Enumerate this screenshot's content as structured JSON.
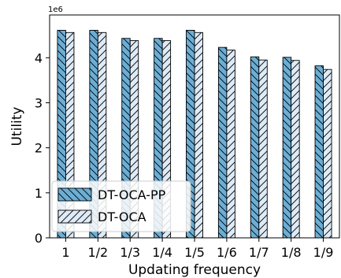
{
  "chart_data": {
    "type": "bar",
    "categories": [
      "1",
      "1/2",
      "1/3",
      "1/4",
      "1/5",
      "1/6",
      "1/7",
      "1/8",
      "1/9"
    ],
    "series": [
      {
        "name": "DT-OCA-PP",
        "values": [
          4.61,
          4.61,
          4.43,
          4.43,
          4.61,
          4.23,
          4.02,
          4.01,
          3.82
        ],
        "color": "#6baed6",
        "hatch": "backslash"
      },
      {
        "name": "DT-OCA",
        "values": [
          4.56,
          4.56,
          4.38,
          4.38,
          4.56,
          4.17,
          3.95,
          3.94,
          3.74
        ],
        "color": "#deebf7",
        "hatch": "slash"
      }
    ],
    "xlabel": "Updating frequency",
    "ylabel": "Utility",
    "y_multiplier": "1e6",
    "ylim": [
      0,
      4.95
    ],
    "yticks": [
      "0",
      "1",
      "2",
      "3",
      "4"
    ],
    "grid": false,
    "legend_position": "lower-left"
  }
}
